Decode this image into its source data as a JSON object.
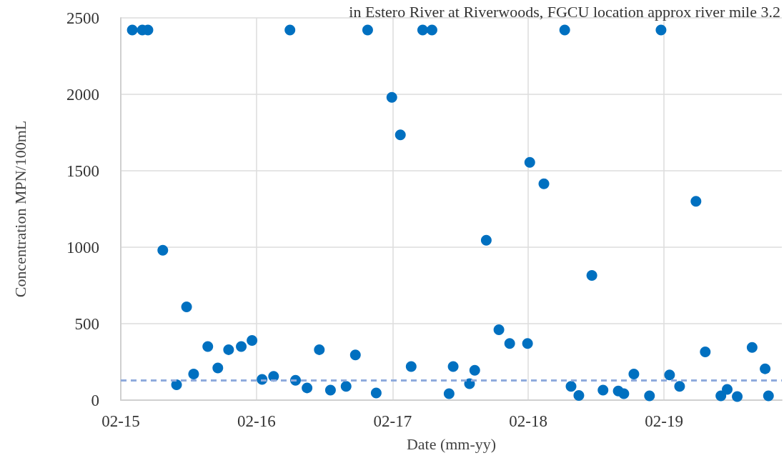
{
  "chart_data": {
    "type": "scatter",
    "title": "in Estero River at Riverwoods, FGCU location approx river mile 3.2",
    "xlabel": "Date (mm-yy)",
    "ylabel": "Concentration MPN/100mL",
    "x": [
      "2015-03-04",
      "2015-03-31",
      "2015-04-15",
      "2015-05-25",
      "2015-07-01",
      "2015-07-28",
      "2015-08-16",
      "2015-09-23",
      "2015-10-20",
      "2015-11-18",
      "2015-12-22",
      "2016-01-20",
      "2016-02-16",
      "2016-03-18",
      "2016-05-01",
      "2016-05-16",
      "2016-06-16",
      "2016-07-19",
      "2016-08-18",
      "2016-09-29",
      "2016-10-24",
      "2016-11-26",
      "2016-12-19",
      "2017-01-30",
      "2017-02-22",
      "2017-03-23",
      "2017-04-23",
      "2017-05-18",
      "2017-07-03",
      "2017-07-14",
      "2017-08-27",
      "2017-09-10",
      "2017-10-11",
      "2017-11-14",
      "2017-12-13",
      "2018-01-30",
      "2018-02-05",
      "2018-03-15",
      "2018-05-10",
      "2018-05-27",
      "2018-06-17",
      "2018-07-22",
      "2018-08-21",
      "2018-10-01",
      "2018-10-16",
      "2018-11-12",
      "2018-12-24",
      "2019-01-24",
      "2019-02-16",
      "2019-03-15",
      "2019-04-28",
      "2019-05-23",
      "2019-07-04",
      "2019-07-21",
      "2019-08-17",
      "2019-09-26",
      "2019-10-31",
      "2019-11-09"
    ],
    "series": [
      {
        "color": "#0070c0",
        "values": [
          2420,
          2420,
          2420,
          980,
          100,
          610,
          170,
          350,
          210,
          330,
          350,
          390,
          135,
          155,
          2420,
          130,
          80,
          330,
          65,
          90,
          295,
          2420,
          47,
          1980,
          1735,
          220,
          2420,
          2420,
          42,
          220,
          107,
          195,
          1045,
          460,
          370,
          370,
          1555,
          1415,
          2420,
          90,
          30,
          815,
          65,
          60,
          42,
          170,
          28,
          2420,
          165,
          90,
          1300,
          315,
          28,
          70,
          23,
          345,
          205,
          28
        ]
      }
    ],
    "xlim": [
      "2015-02-01",
      "2019-12-15"
    ],
    "xticks": [
      {
        "value": "2015-02-01",
        "label": "02-15"
      },
      {
        "value": "2016-02-01",
        "label": "02-16"
      },
      {
        "value": "2017-02-01",
        "label": "02-17"
      },
      {
        "value": "2018-02-01",
        "label": "02-18"
      },
      {
        "value": "2019-02-01",
        "label": "02-19"
      }
    ],
    "ylim": [
      0,
      2500
    ],
    "yticks": [
      0,
      500,
      1000,
      1500,
      2000,
      2500
    ],
    "ref_lines": [
      {
        "axis": "y",
        "value": 130,
        "color": "#8faadc",
        "line_style": "dashed"
      }
    ],
    "grid": true,
    "marker": "circle"
  }
}
